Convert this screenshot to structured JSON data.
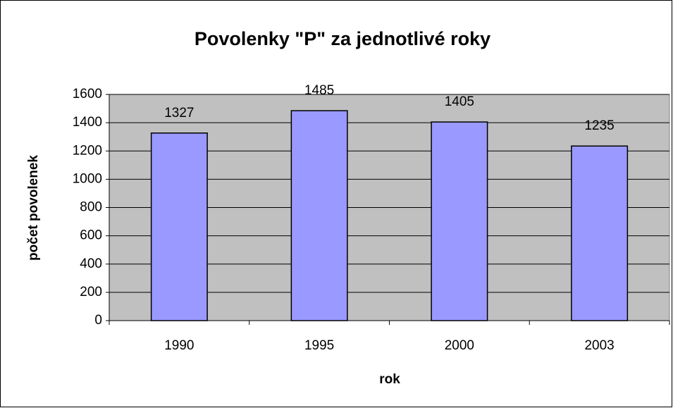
{
  "chart_data": {
    "type": "bar",
    "title": "Povolenky \"P\" za jednotlivé roky",
    "x_label": "rok",
    "y_label": "počet povolenek",
    "categories": [
      "1990",
      "1995",
      "2000",
      "2003"
    ],
    "values": [
      1327,
      1485,
      1405,
      1235
    ],
    "color": "#9999ff",
    "ylim": [
      0,
      1600
    ],
    "yticks": [
      0,
      200,
      400,
      600,
      800,
      1000,
      1200,
      1400,
      1600
    ],
    "grid": true,
    "plot_background": "#c0c0c0"
  }
}
